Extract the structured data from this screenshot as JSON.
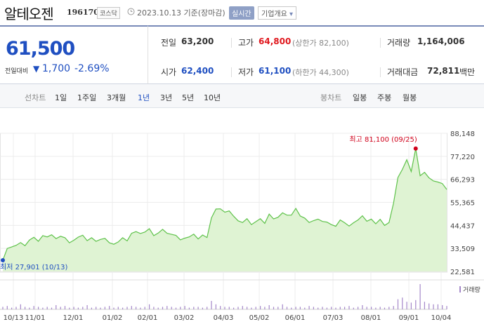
{
  "header": {
    "name": "알테오젠",
    "code": "196170",
    "market": "코스닥",
    "clock_icon": "clock-icon",
    "base_date": "2023.10.13 기준(장마감)",
    "realtime": "실시간",
    "company_overview": "기업개요",
    "company_overview_arrow": "▾"
  },
  "price": {
    "current": "61,500",
    "change_label": "전일대비",
    "change_arrow": "▼",
    "change": "1,700",
    "change_pct": "-2.69%",
    "color_down": "#1f4fc1",
    "color_up": "#e0191f"
  },
  "stats": {
    "prev_close_label": "전일",
    "prev_close": "63,200",
    "high_label": "고가",
    "high": "64,800",
    "upper_limit": "(상한가 82,100)",
    "volume_label": "거래량",
    "volume": "1,164,006",
    "open_label": "시가",
    "open": "62,400",
    "low_label": "저가",
    "low": "61,100",
    "lower_limit": "(하한가 44,300)",
    "amount_label": "거래대금",
    "amount": "72,811",
    "amount_unit": "백만"
  },
  "periods": {
    "line_chart_label": "선차트",
    "line_items": [
      "1일",
      "1주일",
      "3개월",
      "1년",
      "3년",
      "5년",
      "10년"
    ],
    "selected": "1년",
    "candle_chart_label": "봉차트",
    "candle_items": [
      "일봉",
      "주봉",
      "월봉"
    ]
  },
  "chart_data": {
    "type": "area",
    "y_ticks": [
      "88,148",
      "77,220",
      "66,293",
      "55,365",
      "44,437",
      "33,509",
      "22,581"
    ],
    "ylim": [
      22581,
      88148
    ],
    "x_ticks": [
      "10/13",
      "11/01",
      "12/01",
      "01/02",
      "02/01",
      "03/02",
      "04/03",
      "05/02",
      "06/01",
      "07/03",
      "08/01",
      "09/01",
      "10/04"
    ],
    "max_label": "최고 81,100 (09/25)",
    "min_label": "최저 27,901 (10/13)",
    "volume_legend": "거래량",
    "grid": true,
    "line_color": "#5ec24a",
    "fill_color": "#dff3d3",
    "max_color": "#d0021b",
    "min_color": "#1f4fc1",
    "series": [
      {
        "values": [
          27901,
          33500,
          34200,
          35000,
          36300,
          34800,
          37500,
          38800,
          36900,
          39600,
          39000,
          40000,
          38200,
          39300,
          38600,
          36200,
          37400,
          38900,
          39800,
          37200,
          38600,
          36900,
          37800,
          38300,
          36200,
          35500,
          36600,
          38600,
          37100,
          40700,
          41500,
          40600,
          41300,
          42900,
          39600,
          40800,
          42600,
          40700,
          40200,
          39700,
          37600,
          38400,
          39000,
          40300,
          38000,
          39900,
          38700,
          48000,
          52200,
          52300,
          50700,
          51300,
          48800,
          46600,
          45800,
          47600,
          44800,
          46200,
          47600,
          45400,
          49800,
          47500,
          48300,
          50400,
          49300,
          49300,
          52500,
          48900,
          47900,
          45800,
          46700,
          47400,
          46300,
          46000,
          44800,
          44000,
          47000,
          45700,
          44100,
          45700,
          47000,
          49000,
          46400,
          47400,
          45200,
          47300,
          44400,
          45800,
          55000,
          67200,
          71000,
          75600,
          70000,
          80900,
          68000,
          69600,
          67000,
          65500,
          65000,
          64300,
          61500
        ]
      }
    ],
    "volumes": [
      3,
      4,
      2,
      3,
      6,
      3,
      2,
      4,
      3,
      2,
      3,
      2,
      5,
      3,
      4,
      2,
      3,
      2,
      3,
      5,
      2,
      3,
      2,
      3,
      4,
      2,
      3,
      2,
      3,
      4,
      3,
      2,
      3,
      6,
      3,
      2,
      3,
      4,
      3,
      2,
      3,
      4,
      2,
      3,
      3,
      2,
      3,
      10,
      6,
      4,
      3,
      3,
      2,
      3,
      4,
      3,
      2,
      3,
      4,
      3,
      5,
      3,
      3,
      6,
      3,
      2,
      3,
      3,
      2,
      4,
      3,
      2,
      3,
      2,
      3,
      2,
      3,
      3,
      4,
      2,
      3,
      5,
      3,
      3,
      2,
      3,
      2,
      3,
      4,
      12,
      14,
      9,
      8,
      11,
      30,
      9,
      7,
      6,
      6,
      5,
      4
    ]
  }
}
